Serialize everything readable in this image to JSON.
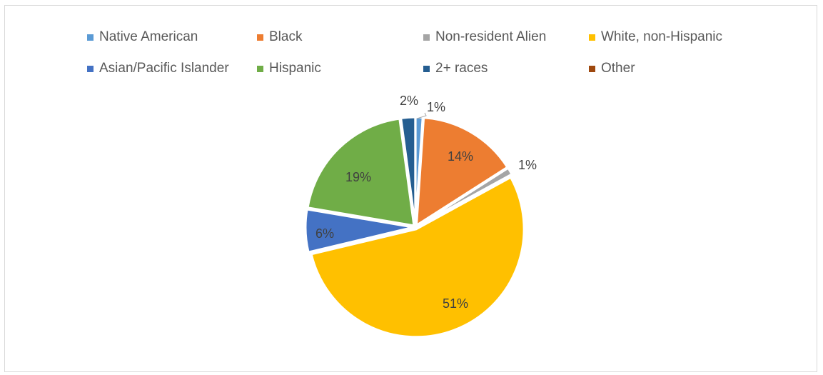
{
  "chart_data": {
    "type": "pie",
    "title": "",
    "legend_placement": "top",
    "categories": [
      "Native American",
      "Black",
      "Non-resident Alien",
      "White, non-Hispanic",
      "Asian/Pacific Islander",
      "Hispanic",
      "2+ races",
      "Other"
    ],
    "values": [
      1,
      14,
      1,
      51,
      6,
      19,
      2,
      0
    ],
    "data_labels": [
      "1%",
      "14%",
      "1%",
      "51%",
      "6%",
      "19%",
      "2%",
      ""
    ],
    "colors": [
      "#5b9bd5",
      "#ed7d31",
      "#a5a5a5",
      "#ffc000",
      "#4472c4",
      "#70ad47",
      "#255e91",
      "#9e480e"
    ]
  },
  "legend": {
    "items": [
      {
        "label": "Native American",
        "color": "#5b9bd5"
      },
      {
        "label": "Black",
        "color": "#ed7d31"
      },
      {
        "label": "Non-resident Alien",
        "color": "#a5a5a5"
      },
      {
        "label": "White, non-Hispanic",
        "color": "#ffc000"
      },
      {
        "label": "Asian/Pacific Islander",
        "color": "#4472c4"
      },
      {
        "label": "Hispanic",
        "color": "#70ad47"
      },
      {
        "label": "2+ races",
        "color": "#255e91"
      },
      {
        "label": "Other",
        "color": "#9e480e"
      }
    ]
  }
}
